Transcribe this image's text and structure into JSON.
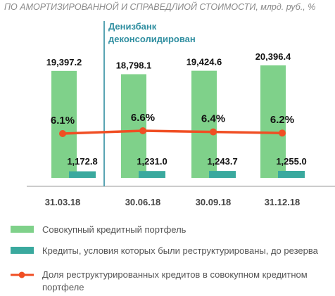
{
  "chart_data": {
    "type": "bar",
    "title": "ПО АМОРТИЗИРОВАННОЙ И СПРАВЕДЛИОЙ СТОИМОСТИ, млрд. руб., %",
    "categories": [
      "31.03.18",
      "30.06.18",
      "30.09.18",
      "31.12.18"
    ],
    "annotation": {
      "lines": [
        "Денизбанк",
        "деконсолидирован"
      ],
      "between": [
        "31.03.18",
        "30.06.18"
      ]
    },
    "series": [
      {
        "name": "Совокупный кредитный портфель",
        "kind": "bar",
        "color": "#7fd18a",
        "values": [
          19397.2,
          18798.1,
          19424.6,
          20396.4
        ],
        "labels": [
          "19,397.2",
          "18,798.1",
          "19,424.6",
          "20,396.4"
        ]
      },
      {
        "name": "Кредиты, условия которых были реструктурированы, до резерва",
        "kind": "bar",
        "color": "#3aa99e",
        "values": [
          1172.8,
          1231.0,
          1243.7,
          1255.0
        ],
        "labels": [
          "1,172.8",
          "1,231.0",
          "1,243.7",
          "1,255.0"
        ]
      },
      {
        "name": "Доля реструктурированных кредитов в совокупном кредитном портфеле",
        "kind": "line",
        "color": "#f04e23",
        "values": [
          6.1,
          6.6,
          6.4,
          6.2
        ],
        "labels": [
          "6.1%",
          "6.6%",
          "6.4%",
          "6.2%"
        ]
      }
    ],
    "legend": {
      "placement": "bottom",
      "lines": [
        [
          "Совокупный кредитный портфель"
        ],
        [
          "Кредиты, условия которых были реструктурированы, до резерва"
        ],
        [
          "Доля реструктурированных кредитов в совокупном кредитном",
          "портфеле"
        ]
      ]
    },
    "grid": false
  }
}
